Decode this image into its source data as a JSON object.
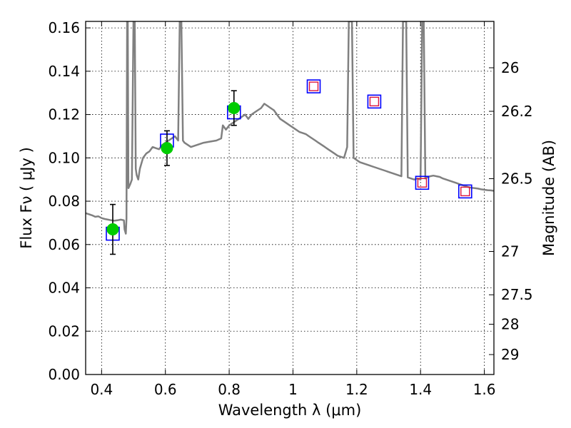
{
  "chart_data": {
    "type": "line",
    "xlabel": "Wavelength  λ (μm)",
    "ylabel": "Flux  Fν  ( μJy )",
    "y2label": "Magnitude (AB)",
    "xlim": [
      0.35,
      1.63
    ],
    "ylim": [
      0.0,
      0.163
    ],
    "grid": true,
    "x_ticks": [
      {
        "value": 0.4,
        "label": "0.4"
      },
      {
        "value": 0.6,
        "label": "0.6"
      },
      {
        "value": 0.8,
        "label": "0.8"
      },
      {
        "value": 1.0,
        "label": "1"
      },
      {
        "value": 1.2,
        "label": "1.2"
      },
      {
        "value": 1.4,
        "label": "1.4"
      },
      {
        "value": 1.6,
        "label": "1.6"
      }
    ],
    "y_ticks": [
      {
        "value": 0.0,
        "label": "0.00"
      },
      {
        "value": 0.02,
        "label": "0.02"
      },
      {
        "value": 0.04,
        "label": "0.04"
      },
      {
        "value": 0.06,
        "label": "0.06"
      },
      {
        "value": 0.08,
        "label": "0.08"
      },
      {
        "value": 0.1,
        "label": "0.10"
      },
      {
        "value": 0.12,
        "label": "0.12"
      },
      {
        "value": 0.14,
        "label": "0.14"
      },
      {
        "value": 0.16,
        "label": "0.16"
      }
    ],
    "y2_ticks": [
      {
        "flux": 0.1416,
        "label": "26"
      },
      {
        "flux": 0.1215,
        "label": "26.2"
      },
      {
        "flux": 0.0904,
        "label": "26.5"
      },
      {
        "flux": 0.0568,
        "label": "27"
      },
      {
        "flux": 0.0368,
        "label": "27.5"
      },
      {
        "flux": 0.0232,
        "label": "28"
      },
      {
        "flux": 0.0092,
        "label": "29"
      }
    ],
    "series": [
      {
        "kind": "model_spectrum",
        "color": "#808080",
        "points": [
          [
            0.35,
            0.0745
          ],
          [
            0.36,
            0.074
          ],
          [
            0.37,
            0.0735
          ],
          [
            0.38,
            0.0728
          ],
          [
            0.39,
            0.073
          ],
          [
            0.4,
            0.0722
          ],
          [
            0.41,
            0.0718
          ],
          [
            0.42,
            0.0715
          ],
          [
            0.43,
            0.0712
          ],
          [
            0.44,
            0.071
          ],
          [
            0.45,
            0.0712
          ],
          [
            0.46,
            0.0715
          ],
          [
            0.47,
            0.0712
          ],
          [
            0.472,
            0.067
          ],
          [
            0.476,
            0.065
          ],
          [
            0.478,
            0.072
          ],
          [
            0.48,
            0.163
          ],
          [
            0.482,
            0.163
          ],
          [
            0.484,
            0.086
          ],
          [
            0.49,
            0.088
          ],
          [
            0.495,
            0.09
          ],
          [
            0.5,
            0.163
          ],
          [
            0.504,
            0.163
          ],
          [
            0.507,
            0.095
          ],
          [
            0.51,
            0.092
          ],
          [
            0.515,
            0.09
          ],
          [
            0.52,
            0.095
          ],
          [
            0.53,
            0.1
          ],
          [
            0.54,
            0.102
          ],
          [
            0.55,
            0.103
          ],
          [
            0.56,
            0.105
          ],
          [
            0.57,
            0.1045
          ],
          [
            0.58,
            0.104
          ],
          [
            0.59,
            0.106
          ],
          [
            0.6,
            0.107
          ],
          [
            0.61,
            0.108
          ],
          [
            0.62,
            0.109
          ],
          [
            0.63,
            0.11
          ],
          [
            0.64,
            0.108
          ],
          [
            0.645,
            0.163
          ],
          [
            0.65,
            0.163
          ],
          [
            0.655,
            0.108
          ],
          [
            0.66,
            0.107
          ],
          [
            0.67,
            0.106
          ],
          [
            0.68,
            0.105
          ],
          [
            0.69,
            0.1055
          ],
          [
            0.7,
            0.106
          ],
          [
            0.72,
            0.107
          ],
          [
            0.74,
            0.1075
          ],
          [
            0.76,
            0.108
          ],
          [
            0.775,
            0.109
          ],
          [
            0.78,
            0.115
          ],
          [
            0.79,
            0.113
          ],
          [
            0.8,
            0.115
          ],
          [
            0.81,
            0.116
          ],
          [
            0.82,
            0.117
          ],
          [
            0.83,
            0.118
          ],
          [
            0.84,
            0.119
          ],
          [
            0.85,
            0.12
          ],
          [
            0.86,
            0.118
          ],
          [
            0.87,
            0.12
          ],
          [
            0.88,
            0.121
          ],
          [
            0.89,
            0.122
          ],
          [
            0.9,
            0.123
          ],
          [
            0.91,
            0.125
          ],
          [
            0.92,
            0.124
          ],
          [
            0.93,
            0.123
          ],
          [
            0.94,
            0.122
          ],
          [
            0.95,
            0.12
          ],
          [
            0.96,
            0.118
          ],
          [
            0.97,
            0.117
          ],
          [
            0.98,
            0.116
          ],
          [
            0.99,
            0.115
          ],
          [
            1.0,
            0.114
          ],
          [
            1.01,
            0.113
          ],
          [
            1.02,
            0.112
          ],
          [
            1.03,
            0.1115
          ],
          [
            1.04,
            0.111
          ],
          [
            1.05,
            0.11
          ],
          [
            1.06,
            0.109
          ],
          [
            1.07,
            0.108
          ],
          [
            1.08,
            0.107
          ],
          [
            1.09,
            0.106
          ],
          [
            1.1,
            0.105
          ],
          [
            1.11,
            0.104
          ],
          [
            1.12,
            0.103
          ],
          [
            1.13,
            0.102
          ],
          [
            1.14,
            0.101
          ],
          [
            1.15,
            0.1005
          ],
          [
            1.16,
            0.1
          ],
          [
            1.17,
            0.105
          ],
          [
            1.175,
            0.163
          ],
          [
            1.185,
            0.163
          ],
          [
            1.19,
            0.1
          ],
          [
            1.2,
            0.099
          ],
          [
            1.21,
            0.098
          ],
          [
            1.22,
            0.0975
          ],
          [
            1.23,
            0.097
          ],
          [
            1.24,
            0.0965
          ],
          [
            1.25,
            0.096
          ],
          [
            1.26,
            0.0955
          ],
          [
            1.27,
            0.095
          ],
          [
            1.28,
            0.0945
          ],
          [
            1.29,
            0.094
          ],
          [
            1.3,
            0.0935
          ],
          [
            1.31,
            0.093
          ],
          [
            1.32,
            0.0925
          ],
          [
            1.33,
            0.092
          ],
          [
            1.34,
            0.0915
          ],
          [
            1.345,
            0.163
          ],
          [
            1.355,
            0.163
          ],
          [
            1.36,
            0.091
          ],
          [
            1.37,
            0.0905
          ],
          [
            1.38,
            0.09
          ],
          [
            1.39,
            0.0905
          ],
          [
            1.4,
            0.09
          ],
          [
            1.405,
            0.163
          ],
          [
            1.41,
            0.163
          ],
          [
            1.415,
            0.0905
          ],
          [
            1.42,
            0.091
          ],
          [
            1.43,
            0.0915
          ],
          [
            1.44,
            0.0918
          ],
          [
            1.45,
            0.0915
          ],
          [
            1.46,
            0.0912
          ],
          [
            1.47,
            0.0905
          ],
          [
            1.48,
            0.09
          ],
          [
            1.49,
            0.0895
          ],
          [
            1.5,
            0.089
          ],
          [
            1.51,
            0.0885
          ],
          [
            1.52,
            0.088
          ],
          [
            1.53,
            0.0875
          ],
          [
            1.54,
            0.087
          ],
          [
            1.55,
            0.0865
          ],
          [
            1.56,
            0.0862
          ],
          [
            1.57,
            0.086
          ],
          [
            1.58,
            0.0858
          ],
          [
            1.59,
            0.0855
          ],
          [
            1.6,
            0.0853
          ],
          [
            1.61,
            0.0851
          ],
          [
            1.62,
            0.085
          ],
          [
            1.63,
            0.0848
          ]
        ]
      },
      {
        "kind": "model_photometry",
        "marker": "square",
        "edge_color": "#0000ff",
        "points": [
          [
            0.435,
            0.065
          ],
          [
            0.605,
            0.108
          ],
          [
            0.815,
            0.121
          ],
          [
            1.065,
            0.133
          ],
          [
            1.255,
            0.126
          ],
          [
            1.405,
            0.0885
          ],
          [
            1.54,
            0.0845
          ]
        ]
      },
      {
        "kind": "model_photometry_inner",
        "marker": "square",
        "edge_color": "#dc143c",
        "points": [
          [
            1.065,
            0.133
          ],
          [
            1.255,
            0.126
          ],
          [
            1.405,
            0.0885
          ],
          [
            1.54,
            0.0845
          ]
        ]
      },
      {
        "kind": "observed",
        "marker": "circle",
        "color": "#00cc00",
        "points": [
          {
            "x": 0.435,
            "y": 0.067,
            "yerr": 0.0115
          },
          {
            "x": 0.605,
            "y": 0.1045,
            "yerr": 0.008
          },
          {
            "x": 0.815,
            "y": 0.123,
            "yerr": 0.008
          }
        ]
      }
    ]
  }
}
